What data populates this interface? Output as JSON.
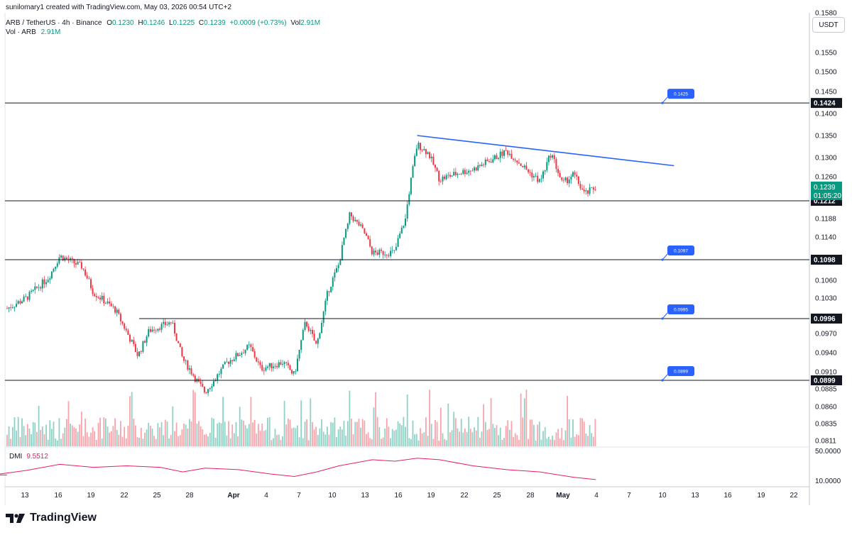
{
  "header": {
    "credit": "sunilomary1 created with TradingView.com, May 03, 2026 00:54 UTC+2",
    "symbol": "ARB / TetherUS · 4h · Binance",
    "o_label": "O",
    "o_value": "0.1230",
    "h_label": "H",
    "h_value": "0.1246",
    "l_label": "L",
    "l_value": "0.1225",
    "c_label": "C",
    "c_value": "0.1239",
    "change": "+0.0009 (+0.73%)",
    "vol_label": "Vol",
    "vol_value": "2.91M",
    "vol2_label": "Vol · ARB",
    "vol2_value": "2.91M"
  },
  "currency_button": "USDT",
  "indicator": {
    "name": "DMI",
    "value": "9.5512",
    "axis_top": "50.0000",
    "axis_bottom": "10.0000"
  },
  "brand": {
    "name": "TradingView"
  },
  "colors": {
    "up": "#089981",
    "down": "#f23645",
    "trend": "#2962ff",
    "dmi": "#e91e63",
    "level_tag": "#2962ff"
  },
  "chart_data": {
    "type": "candlestick",
    "title": "ARB / TetherUS · 4h · Binance",
    "price_axis_ticks": [
      "0.1580",
      "0.1550",
      "0.1500",
      "0.1450",
      "0.1400",
      "0.1350",
      "0.1300",
      "0.1260",
      "0.1212",
      "0.1188",
      "0.1140",
      "0.1098",
      "0.1060",
      "0.1030",
      "0.0996",
      "0.0970",
      "0.0940",
      "0.0910",
      "0.0899",
      "0.0885",
      "0.0860",
      "0.0835",
      "0.0811"
    ],
    "time_axis_ticks": [
      "13",
      "16",
      "19",
      "22",
      "25",
      "28",
      "Apr",
      "4",
      "7",
      "10",
      "13",
      "16",
      "19",
      "22",
      "25",
      "28",
      "May",
      "4",
      "7",
      "10",
      "13",
      "16",
      "19",
      "22"
    ],
    "current_price": "0.1239",
    "countdown": "01:05:20",
    "horizontal_levels": [
      {
        "axis_label": "0.1424",
        "tag": "0.1425"
      },
      {
        "axis_label": "0.1212",
        "tag": ""
      },
      {
        "axis_label": "0.1098",
        "tag": "0.1097"
      },
      {
        "axis_label": "0.0996",
        "tag": "0.0995"
      },
      {
        "axis_label": "0.0899",
        "tag": "0.0899"
      }
    ],
    "trendline": {
      "from": [
        "Apr 17",
        0.135
      ],
      "to": [
        "May 10",
        0.1283
      ]
    },
    "price_path": [
      [
        "Mar 10",
        0.1
      ],
      [
        "Mar 13",
        0.103
      ],
      [
        "Mar 15",
        0.1065
      ],
      [
        "Mar 16",
        0.1105
      ],
      [
        "Mar 18",
        0.1085
      ],
      [
        "Mar 19",
        0.104
      ],
      [
        "Mar 21",
        0.101
      ],
      [
        "Mar 23",
        0.0935
      ],
      [
        "Mar 24",
        0.0975
      ],
      [
        "Mar 26",
        0.099
      ],
      [
        "Mar 27",
        0.093
      ],
      [
        "Mar 28",
        0.0905
      ],
      [
        "Mar 29",
        0.088
      ],
      [
        "Mar 31",
        0.0925
      ],
      [
        "Apr 2",
        0.095
      ],
      [
        "Apr 3",
        0.0915
      ],
      [
        "Apr 5",
        0.0925
      ],
      [
        "Apr 6",
        0.0905
      ],
      [
        "Apr 7",
        0.099
      ],
      [
        "Apr 8",
        0.095
      ],
      [
        "Apr 9",
        0.104
      ],
      [
        "Apr 10",
        0.109
      ],
      [
        "Apr 11",
        0.1195
      ],
      [
        "Apr 12",
        0.1165
      ],
      [
        "Apr 13",
        0.111
      ],
      [
        "Apr 15",
        0.1112
      ],
      [
        "Apr 16",
        0.119
      ],
      [
        "Apr 17",
        0.133
      ],
      [
        "Apr 18",
        0.131
      ],
      [
        "Apr 19",
        0.1255
      ],
      [
        "Apr 21",
        0.127
      ],
      [
        "Apr 22",
        0.1275
      ],
      [
        "Apr 24",
        0.13
      ],
      [
        "Apr 25",
        0.1315
      ],
      [
        "Apr 27",
        0.127
      ],
      [
        "Apr 28",
        0.125
      ],
      [
        "Apr 29",
        0.131
      ],
      [
        "Apr 30",
        0.1245
      ],
      [
        "May 1",
        0.1265
      ],
      [
        "May 2",
        0.1225
      ],
      [
        "May 3",
        0.1239
      ]
    ],
    "dmi_path": [
      [
        "Mar 10",
        18
      ],
      [
        "Mar 13",
        24
      ],
      [
        "Mar 16",
        32
      ],
      [
        "Mar 19",
        28
      ],
      [
        "Mar 22",
        30
      ],
      [
        "Mar 25",
        28
      ],
      [
        "Mar 27",
        22
      ],
      [
        "Mar 29",
        27
      ],
      [
        "Apr 1",
        25
      ],
      [
        "Apr 4",
        19
      ],
      [
        "Apr 6",
        16
      ],
      [
        "Apr 8",
        22
      ],
      [
        "Apr 10",
        30
      ],
      [
        "Apr 13",
        38
      ],
      [
        "Apr 15",
        36
      ],
      [
        "Apr 17",
        40
      ],
      [
        "Apr 19",
        38
      ],
      [
        "Apr 22",
        30
      ],
      [
        "Apr 25",
        25
      ],
      [
        "Apr 28",
        22
      ],
      [
        "May 1",
        15
      ],
      [
        "May 3",
        12
      ]
    ]
  }
}
